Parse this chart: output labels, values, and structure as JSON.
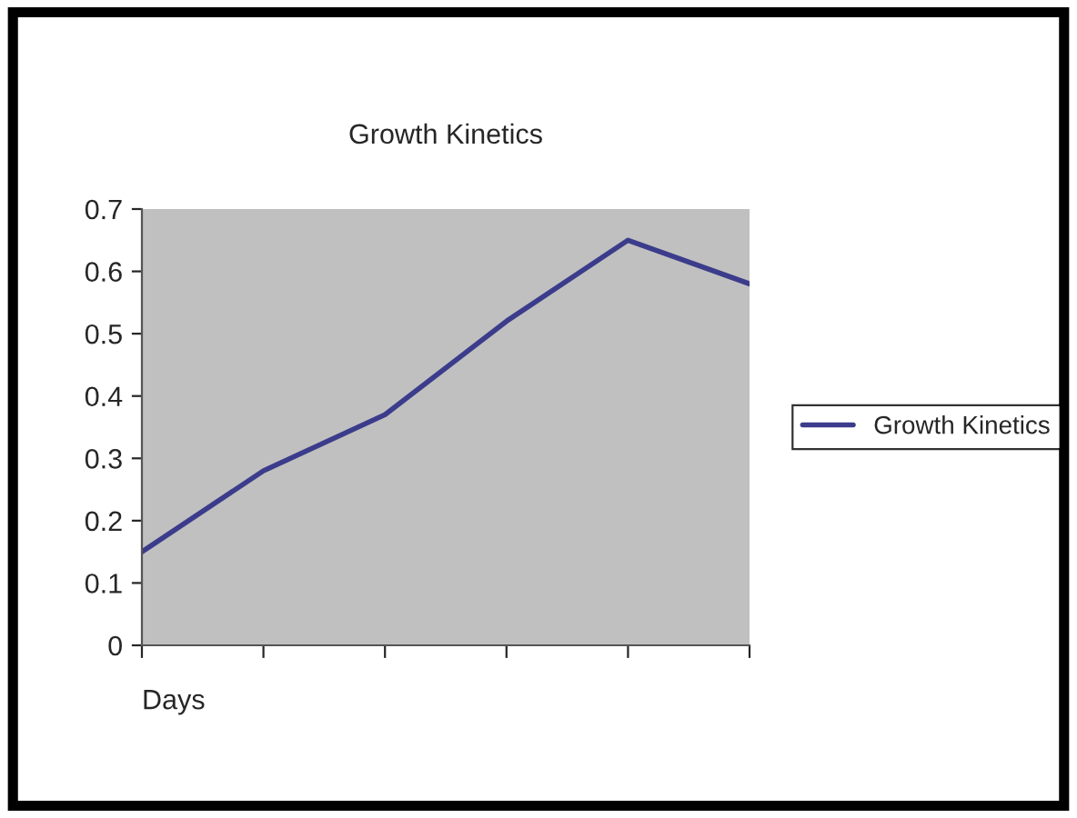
{
  "chart_data": {
    "type": "line",
    "title": "Growth Kinetics",
    "xlabel": "Days",
    "categories": [
      null,
      null,
      null,
      null,
      null,
      null
    ],
    "series": [
      {
        "name": "Growth Kinetics",
        "color": "#3c3c8c",
        "values": [
          0.15,
          0.28,
          0.37,
          0.52,
          0.65,
          0.58
        ]
      }
    ],
    "ylim": [
      0,
      0.7
    ],
    "yticks": [
      0,
      0.1,
      0.2,
      0.3,
      0.4,
      0.5,
      0.6,
      0.7
    ],
    "grid": false,
    "legend": "right",
    "marker": "none",
    "line_style": "solid",
    "tick_labels": "y"
  }
}
